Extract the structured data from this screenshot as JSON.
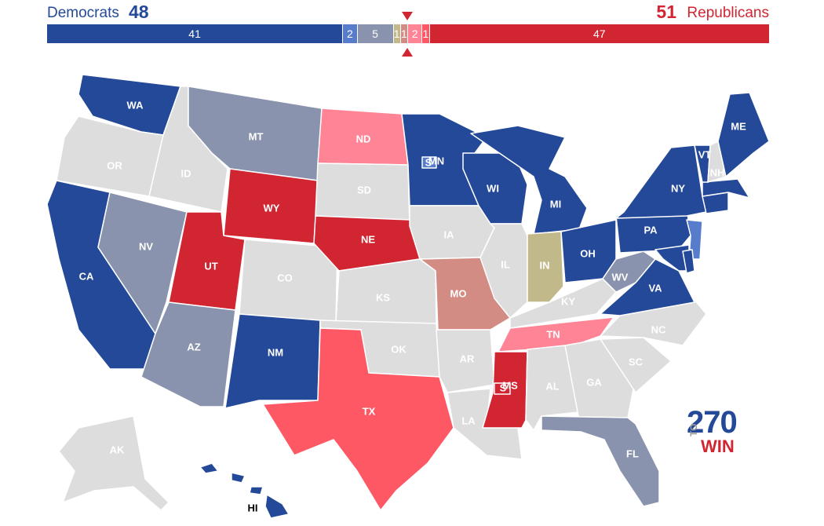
{
  "header": {
    "dem_name": "Democrats",
    "dem_total": "48",
    "rep_total": "51",
    "rep_name": "Republicans"
  },
  "bar": [
    {
      "value": 41,
      "label": "41",
      "color": "#244999"
    },
    {
      "value": 2,
      "label": "2",
      "color": "#577ccc"
    },
    {
      "value": 5,
      "label": "5",
      "color": "#8a93ad"
    },
    {
      "value": 1,
      "label": "1",
      "color": "#c2b98b"
    },
    {
      "value": 1,
      "label": "1",
      "color": "#d28c84"
    },
    {
      "value": 2,
      "label": "2",
      "color": "#ff8495"
    },
    {
      "value": 1,
      "label": "1",
      "color": "#ff5865"
    },
    {
      "value": 47,
      "label": "47",
      "color": "#d22532"
    }
  ],
  "colors": {
    "safe_dem": "#244999",
    "likely_dem": "#577ccc",
    "tossup_dem": "#8a93ad",
    "tossup": "#c2b98b",
    "tossup_rep": "#d28c84",
    "leans_rep": "#ff8495",
    "likely_rep": "#ff5865",
    "safe_rep": "#d22532",
    "no_race": "#dddddd"
  },
  "states": {
    "WA": "WA",
    "OR": "OR",
    "CA": "CA",
    "ID": "ID",
    "NV": "NV",
    "MT": "MT",
    "WY": "WY",
    "UT": "UT",
    "AZ": "AZ",
    "CO": "CO",
    "NM": "NM",
    "ND": "ND",
    "SD": "SD",
    "NE": "NE",
    "KS": "KS",
    "OK": "OK",
    "TX": "TX",
    "MN": "MN",
    "IA": "IA",
    "MO": "MO",
    "AR": "AR",
    "LA": "LA",
    "WI": "WI",
    "IL": "IL",
    "MI": "MI",
    "IN": "IN",
    "OH": "OH",
    "KY": "KY",
    "TN": "TN",
    "MS": "MS",
    "AL": "AL",
    "GA": "GA",
    "FL": "FL",
    "SC": "SC",
    "NC": "NC",
    "VA": "VA",
    "WV": "WV",
    "PA": "PA",
    "NY": "NY",
    "VT": "VT",
    "NH": "NH",
    "ME": "ME",
    "AK": "AK",
    "HI": "HI",
    "MN_S": "S",
    "MS_S": "S"
  },
  "logo": {
    "num": "270",
    "to": "TO",
    "win": "WIN"
  }
}
